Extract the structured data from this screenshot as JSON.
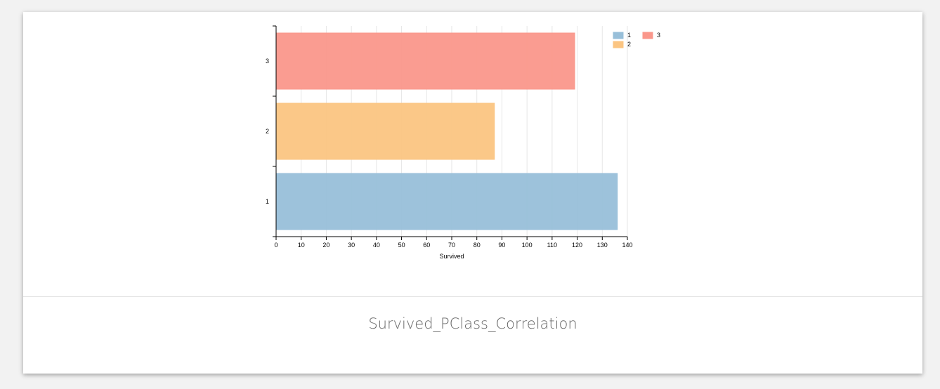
{
  "caption": "Survived_PClass_Correlation",
  "chart_data": {
    "type": "bar",
    "orientation": "horizontal",
    "categories": [
      "1",
      "2",
      "3"
    ],
    "values": [
      136,
      87,
      119
    ],
    "colors": [
      "#98bfd9",
      "#fbc582",
      "#fa978b"
    ],
    "xlabel": "Survived",
    "ylabel": "",
    "xlim": [
      0,
      140
    ],
    "xticks": [
      0,
      10,
      20,
      30,
      40,
      50,
      60,
      70,
      80,
      90,
      100,
      110,
      120,
      130,
      140
    ],
    "grid": true,
    "legend": {
      "placement": "top-right",
      "entries": [
        "1",
        "2",
        "3"
      ]
    }
  }
}
